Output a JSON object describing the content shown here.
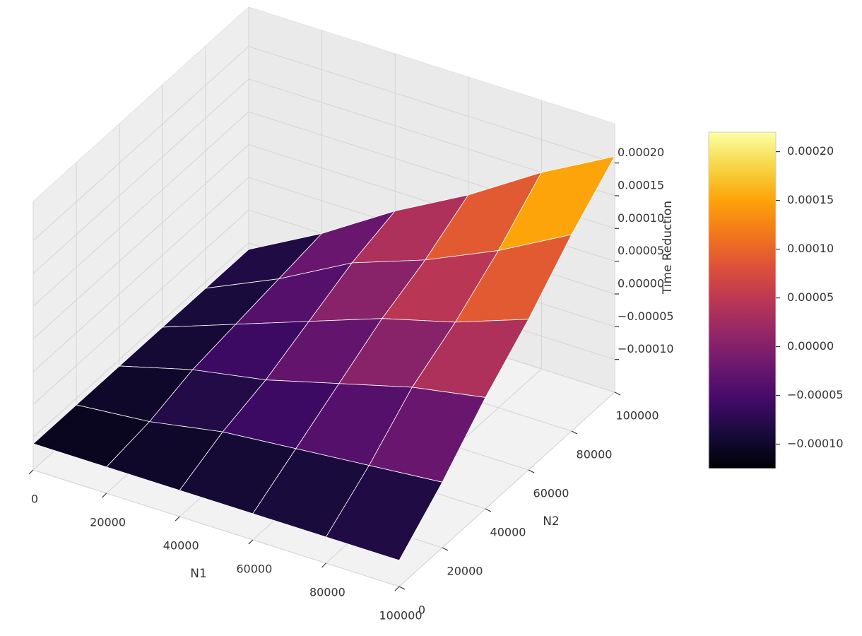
{
  "chart_data": {
    "type": "surface3d",
    "xlabel": "N1",
    "ylabel": "N2",
    "zlabel": "Time Reduction",
    "colormap": "inferno",
    "x": [
      0,
      20000,
      40000,
      60000,
      80000,
      100000
    ],
    "y": [
      0,
      20000,
      40000,
      60000,
      80000,
      100000
    ],
    "z": [
      [
        -0.00011,
        -0.00011,
        -0.00011,
        -0.00011,
        -0.00011,
        -0.00011
      ],
      [
        -0.00011,
        -0.0001,
        -8e-05,
        -7e-05,
        -6e-05,
        -5e-05
      ],
      [
        -0.00011,
        -8e-05,
        -6e-05,
        -3e-05,
        0.0,
        2e-05
      ],
      [
        -0.00011,
        -7e-05,
        -3e-05,
        1e-05,
        4e-05,
        8e-05
      ],
      [
        -0.00011,
        -6e-05,
        0.0,
        4e-05,
        9e-05,
        0.00015
      ],
      [
        -0.00011,
        -5e-05,
        2e-05,
        8e-05,
        0.00015,
        0.00021
      ]
    ],
    "xlim": [
      0,
      100000
    ],
    "ylim": [
      0,
      100000
    ],
    "zlim": [
      -0.00015,
      0.00026
    ],
    "xticks": [
      0,
      20000,
      40000,
      60000,
      80000,
      100000
    ],
    "yticks": [
      0,
      20000,
      40000,
      60000,
      80000,
      100000
    ],
    "zticks": [
      {
        "value": -0.0001,
        "label": "−0.00010"
      },
      {
        "value": -5e-05,
        "label": "−0.00005"
      },
      {
        "value": 0,
        "label": "0.00000"
      },
      {
        "value": 5e-05,
        "label": "0.00005"
      },
      {
        "value": 0.0001,
        "label": "0.00010"
      },
      {
        "value": 0.00015,
        "label": "0.00015"
      },
      {
        "value": 0.0002,
        "label": "0.00020"
      }
    ],
    "colorbar": {
      "clim": [
        -0.000125,
        0.00022
      ],
      "ticks": [
        {
          "value": -0.0001,
          "label": "−0.00010"
        },
        {
          "value": -5e-05,
          "label": "−0.00005"
        },
        {
          "value": 0,
          "label": "0.00000"
        },
        {
          "value": 5e-05,
          "label": "0.00005"
        },
        {
          "value": 0.0001,
          "label": "0.00010"
        },
        {
          "value": 0.00015,
          "label": "0.00015"
        },
        {
          "value": 0.0002,
          "label": "0.00020"
        }
      ]
    },
    "grid": true
  }
}
